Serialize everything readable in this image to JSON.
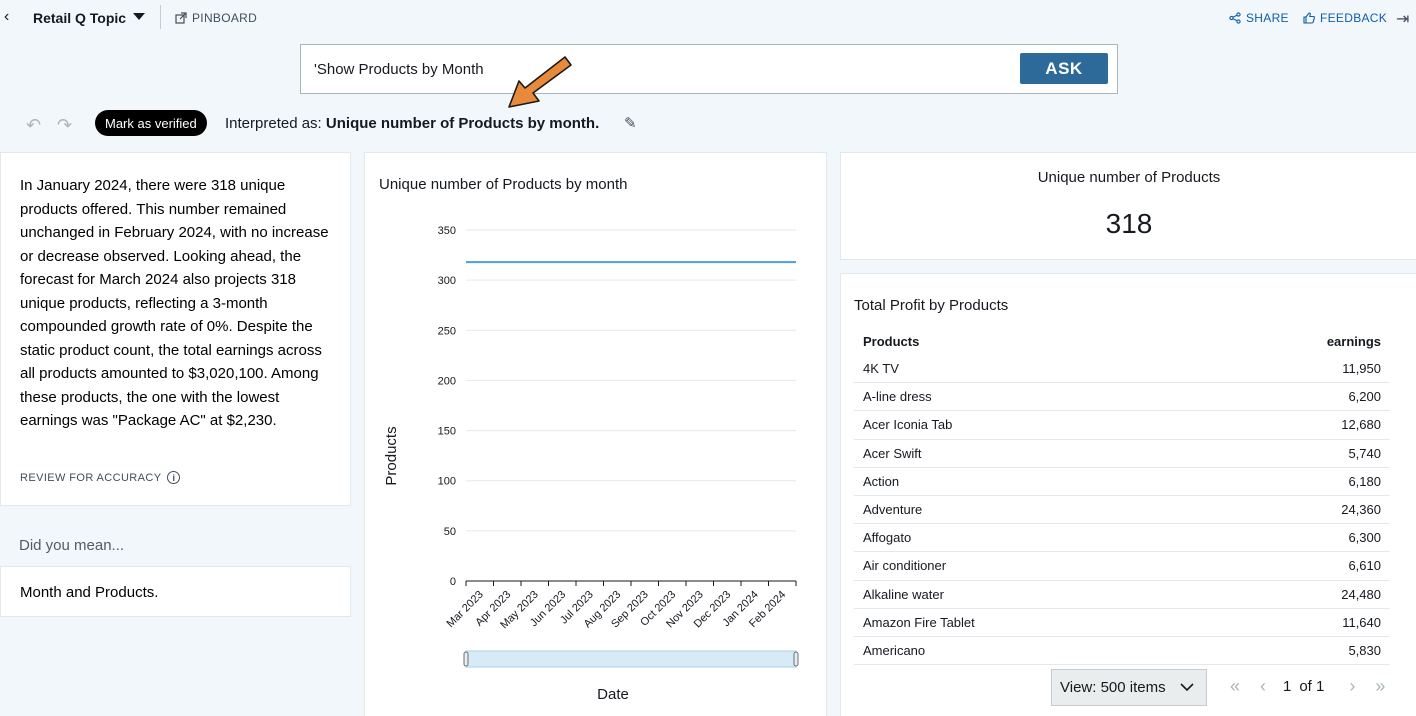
{
  "topbar": {
    "topic_title": "Retail Q Topic",
    "pinboard_label": "PINBOARD",
    "share_label": "SHARE",
    "feedback_label": "FEEDBACK"
  },
  "search": {
    "query": "'Show Products by Month",
    "ask_label": "ASK"
  },
  "interpretation": {
    "verified_label": "Mark as verified",
    "prefix": "Interpreted as: ",
    "text": "Unique number of Products by month."
  },
  "summary": {
    "text": "In January 2024, there were 318 unique products offered. This number remained unchanged in February 2024, with no increase or decrease observed. Looking ahead, the forecast for March 2024 also projects 318 unique products, reflecting a 3-month compounded growth rate of 0%. Despite the static product count, the total earnings across all products amounted to $3,020,100. Among these products, the one with the lowest earnings was \"Package AC\" at $2,230.",
    "review_label": "REVIEW FOR ACCURACY"
  },
  "did_you_mean": {
    "label": "Did you mean...",
    "suggestion": "Month and Products."
  },
  "chart_data": {
    "type": "line",
    "title": "Unique number of Products by month",
    "xlabel": "Date",
    "ylabel": "Products",
    "categories": [
      "Mar 2023",
      "Apr 2023",
      "May 2023",
      "Jun 2023",
      "Jul 2023",
      "Aug 2023",
      "Sep 2023",
      "Oct 2023",
      "Nov 2023",
      "Dec 2023",
      "Jan 2024",
      "Feb 2024"
    ],
    "values": [
      318,
      318,
      318,
      318,
      318,
      318,
      318,
      318,
      318,
      318,
      318,
      318
    ],
    "yticks": [
      0,
      50,
      100,
      150,
      200,
      250,
      300,
      350
    ],
    "ylim": [
      0,
      350
    ],
    "grid": true,
    "color": "#4a9fdc"
  },
  "kpi": {
    "title": "Unique number of Products",
    "value": "318"
  },
  "table": {
    "title": "Total Profit by Products",
    "columns": [
      "Products",
      "earnings"
    ],
    "rows": [
      [
        "4K TV",
        "11,950"
      ],
      [
        "A-line dress",
        "6,200"
      ],
      [
        "Acer Iconia Tab",
        "12,680"
      ],
      [
        "Acer Swift",
        "5,740"
      ],
      [
        "Action",
        "6,180"
      ],
      [
        "Adventure",
        "24,360"
      ],
      [
        "Affogato",
        "6,300"
      ],
      [
        "Air conditioner",
        "6,610"
      ],
      [
        "Alkaline water",
        "24,480"
      ],
      [
        "Amazon Fire Tablet",
        "11,640"
      ],
      [
        "Americano",
        "5,830"
      ]
    ],
    "view_label": "View: 500 items",
    "page_current": "1",
    "page_of": "of 1"
  }
}
